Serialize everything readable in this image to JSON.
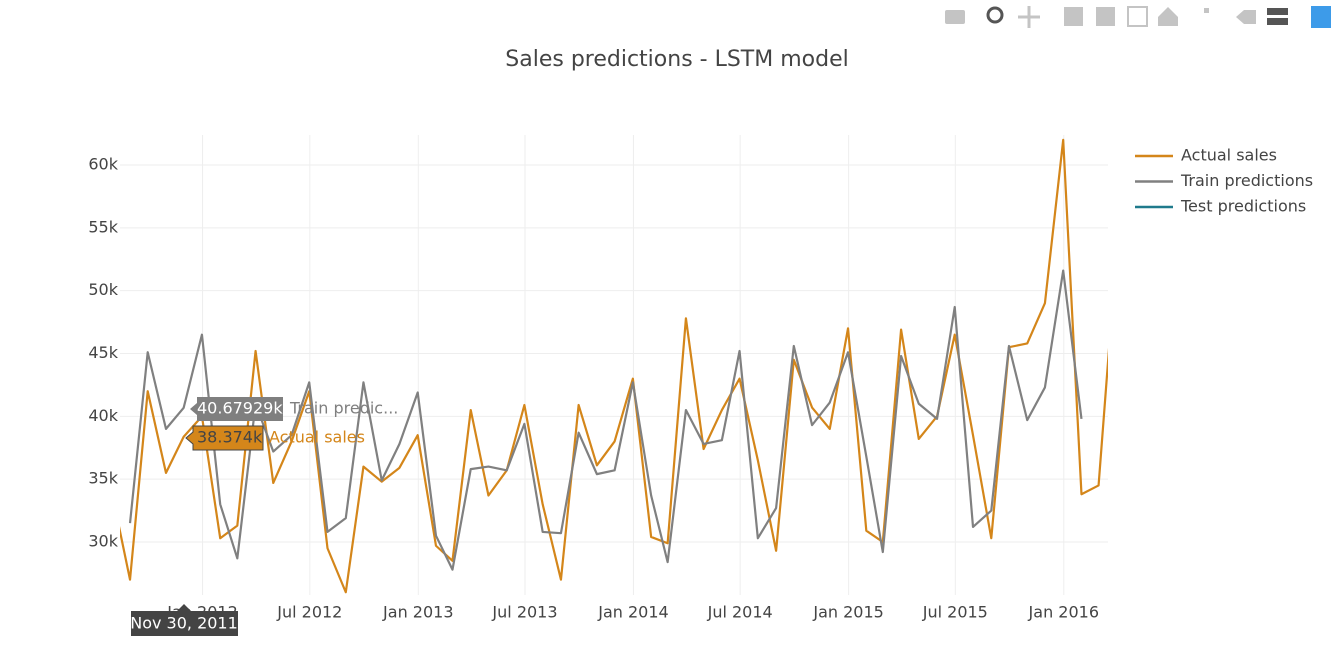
{
  "chart_data": {
    "type": "line",
    "title": "Sales predictions - LSTM model",
    "x": [
      "2011-07-31",
      "2011-08-31",
      "2011-09-30",
      "2011-10-31",
      "2011-11-30",
      "2011-12-31",
      "2012-01-31",
      "2012-02-29",
      "2012-03-31",
      "2012-04-30",
      "2012-05-31",
      "2012-06-30",
      "2012-07-31",
      "2012-08-31",
      "2012-09-30",
      "2012-10-31",
      "2012-11-30",
      "2012-12-31",
      "2013-01-31",
      "2013-02-28",
      "2013-03-31",
      "2013-04-30",
      "2013-05-31",
      "2013-06-30",
      "2013-07-31",
      "2013-08-31",
      "2013-09-30",
      "2013-10-31",
      "2013-11-30",
      "2013-12-31",
      "2014-01-31",
      "2014-02-28",
      "2014-03-31",
      "2014-04-30",
      "2014-05-31",
      "2014-06-30",
      "2014-07-31",
      "2014-08-31",
      "2014-09-30",
      "2014-10-31",
      "2014-11-30",
      "2014-12-31",
      "2015-01-31",
      "2015-02-28",
      "2015-03-31",
      "2015-04-30",
      "2015-05-31",
      "2015-06-30",
      "2015-07-31",
      "2015-08-31",
      "2015-09-30",
      "2015-10-31",
      "2015-11-30",
      "2015-12-31",
      "2016-01-31",
      "2016-02-29",
      "2016-03-31"
    ],
    "series": [
      {
        "name": "Actual sales",
        "color": "#d4861a",
        "values": [
          34000,
          27000,
          42000,
          35500,
          38374,
          40000,
          30300,
          31300,
          45200,
          34700,
          38000,
          42000,
          29500,
          26000,
          36000,
          34800,
          35900,
          38500,
          29700,
          28500,
          40500,
          33700,
          35700,
          40900,
          33000,
          27000,
          40900,
          36100,
          38000,
          43000,
          30400,
          29900,
          47800,
          37400,
          40500,
          43000,
          36500,
          29300,
          44500,
          40700,
          39000,
          47000,
          30900,
          30000,
          46900,
          38200,
          40000,
          46500,
          38500,
          30300,
          45500,
          45800,
          49000,
          62000,
          33800,
          34500,
          53500
        ]
      },
      {
        "name": "Train predictions",
        "color": "#808080",
        "values": [
          null,
          31500,
          45100,
          39000,
          40679.29,
          46500,
          33000,
          28700,
          41000,
          37200,
          38500,
          42700,
          30800,
          31900,
          42700,
          34900,
          37800,
          41900,
          30500,
          27800,
          35800,
          36000,
          35700,
          39400,
          30800,
          30700,
          38700,
          35400,
          35700,
          42700,
          33700,
          28400,
          40500,
          37800,
          38100,
          45200,
          30300,
          32700,
          45600,
          39300,
          41100,
          45100,
          36800,
          29200,
          44800,
          41000,
          39800,
          48700,
          31200,
          32500,
          45600,
          39700,
          42300,
          51600,
          39800,
          null,
          null
        ]
      },
      {
        "name": "Test predictions",
        "color": "#1f7a8c",
        "values": [
          null,
          null,
          null,
          null,
          null,
          null,
          null,
          null,
          null,
          null,
          null,
          null,
          null,
          null,
          null,
          null,
          null,
          null,
          null,
          null,
          null,
          null,
          null,
          null,
          null,
          null,
          null,
          null,
          null,
          null,
          null,
          null,
          null,
          null,
          null,
          null,
          null,
          null,
          null,
          null,
          null,
          null,
          null,
          null,
          null,
          null,
          null,
          null,
          null,
          null,
          null,
          null,
          null,
          null,
          null,
          null,
          null
        ]
      }
    ],
    "xlim": [
      "2011-08-14",
      "2016-03-16"
    ],
    "xticks": [
      {
        "value": "2012-01-01",
        "label": "Jan 2012"
      },
      {
        "value": "2012-07-01",
        "label": "Jul 2012"
      },
      {
        "value": "2013-01-01",
        "label": "Jan 2013"
      },
      {
        "value": "2013-07-01",
        "label": "Jul 2013"
      },
      {
        "value": "2014-01-01",
        "label": "Jan 2014"
      },
      {
        "value": "2014-07-01",
        "label": "Jul 2014"
      },
      {
        "value": "2015-01-01",
        "label": "Jan 2015"
      },
      {
        "value": "2015-07-01",
        "label": "Jul 2015"
      },
      {
        "value": "2016-01-01",
        "label": "Jan 2016"
      }
    ],
    "ylim": [
      25780,
      62390
    ],
    "yticks": [
      {
        "value": 30000,
        "label": "30k"
      },
      {
        "value": 35000,
        "label": "35k"
      },
      {
        "value": 40000,
        "label": "40k"
      },
      {
        "value": 45000,
        "label": "45k"
      },
      {
        "value": 50000,
        "label": "50k"
      },
      {
        "value": 55000,
        "label": "55k"
      },
      {
        "value": 60000,
        "label": "60k"
      }
    ],
    "grid": true,
    "legend": "right",
    "tooltip": {
      "x_label": "Nov 30, 2011",
      "items": [
        {
          "value_label": "40.67929k",
          "name": "Train predic..."
        },
        {
          "value_label": "38.374k",
          "name": "Actual sales"
        }
      ]
    }
  }
}
